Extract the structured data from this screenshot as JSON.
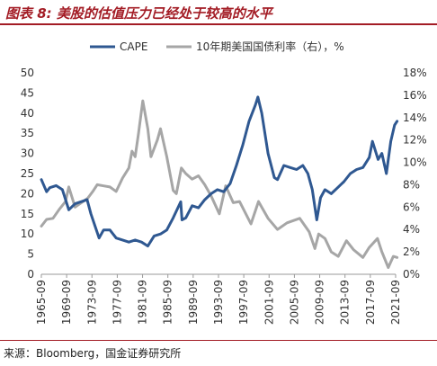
{
  "header": {
    "title": "图表 8: 美股的估值压力已经处于较高的水平"
  },
  "footer": {
    "source": "来源：Bloomberg，国金证券研究所"
  },
  "colors": {
    "cape": "#2f5891",
    "yield": "#a6a6a6",
    "title": "#a31c25"
  },
  "chart_data": {
    "type": "line",
    "title": "",
    "xlabel": "",
    "ylabel": "",
    "y_left_range": [
      0,
      50
    ],
    "y_right_range": [
      0,
      18
    ],
    "y_left_ticks": [
      "0",
      "5",
      "10",
      "15",
      "20",
      "25",
      "30",
      "35",
      "40",
      "45",
      "50"
    ],
    "y_right_ticks": [
      "0%",
      "2%",
      "4%",
      "6%",
      "8%",
      "10%",
      "12%",
      "14%",
      "16%",
      "18%"
    ],
    "x_ticks": [
      "1965-09",
      "1969-09",
      "1973-09",
      "1977-09",
      "1981-09",
      "1985-09",
      "1989-09",
      "1993-09",
      "1997-09",
      "2001-09",
      "2005-09",
      "2009-09",
      "2013-09",
      "2017-09",
      "2021-09"
    ],
    "grid": false,
    "legend_position": "top",
    "series": [
      {
        "name": "CAPE",
        "axis": "left",
        "x": [
          1965.67,
          1966.5,
          1967.0,
          1968.0,
          1969.0,
          1970.0,
          1971.0,
          1972.9,
          1973.5,
          1974.8,
          1975.5,
          1976.5,
          1977.5,
          1978.5,
          1979.5,
          1980.5,
          1981.5,
          1982.5,
          1983.5,
          1984.5,
          1985.5,
          1986.5,
          1987.7,
          1987.9,
          1988.5,
          1989.5,
          1990.5,
          1991.5,
          1992.5,
          1993.5,
          1994.5,
          1995.5,
          1996.5,
          1997.5,
          1998.5,
          1999.5,
          1999.9,
          2000.5,
          2001.5,
          2002.5,
          2003.0,
          2004.0,
          2005.0,
          2006.0,
          2007.0,
          2007.8,
          2008.5,
          2009.2,
          2009.8,
          2010.5,
          2011.5,
          2012.5,
          2013.5,
          2014.5,
          2015.5,
          2016.5,
          2017.5,
          2018.0,
          2018.9,
          2019.5,
          2020.2,
          2020.9,
          2021.5,
          2021.9
        ],
        "y": [
          23.5,
          20.5,
          21.5,
          22.0,
          21.0,
          16.0,
          17.5,
          18.5,
          15.0,
          9.0,
          11.0,
          11.0,
          9.0,
          8.5,
          8.0,
          8.5,
          8.0,
          7.0,
          9.5,
          10.0,
          11.0,
          14.0,
          18.0,
          13.5,
          14.0,
          17.0,
          16.5,
          18.5,
          20.0,
          21.0,
          20.5,
          22.5,
          27.0,
          32.0,
          38.0,
          42.0,
          44.0,
          40.0,
          30.0,
          24.0,
          23.5,
          27.0,
          26.5,
          26.0,
          27.0,
          25.0,
          21.0,
          13.5,
          19.0,
          21.0,
          20.0,
          21.5,
          23.0,
          25.0,
          26.0,
          26.5,
          29.0,
          33.0,
          28.5,
          30.0,
          25.0,
          33.0,
          37.0,
          38.0
        ]
      },
      {
        "name": "10年期美国国债利率（右），%",
        "axis": "right",
        "x": [
          1965.67,
          1966.5,
          1967.5,
          1968.5,
          1969.5,
          1970.0,
          1971.0,
          1972.0,
          1973.0,
          1973.8,
          1974.5,
          1975.5,
          1976.5,
          1977.5,
          1978.5,
          1979.5,
          1980.0,
          1980.5,
          1981.0,
          1981.7,
          1982.5,
          1983.0,
          1984.0,
          1984.5,
          1985.5,
          1986.5,
          1987.0,
          1987.8,
          1988.5,
          1989.5,
          1990.5,
          1991.5,
          1992.5,
          1993.8,
          1994.8,
          1996.0,
          1997.0,
          1998.8,
          2000.0,
          2001.5,
          2003.0,
          2004.5,
          2006.5,
          2008.0,
          2008.9,
          2009.5,
          2010.5,
          2011.5,
          2012.6,
          2013.9,
          2015.0,
          2016.5,
          2017.5,
          2018.8,
          2019.5,
          2020.5,
          2021.3,
          2021.9
        ],
        "y": [
          4.3,
          4.9,
          5.0,
          5.8,
          6.5,
          7.8,
          6.0,
          6.4,
          6.8,
          7.4,
          8.0,
          7.9,
          7.8,
          7.4,
          8.6,
          9.5,
          11.0,
          10.5,
          12.5,
          15.5,
          13.0,
          10.5,
          12.0,
          13.0,
          10.5,
          7.5,
          7.2,
          9.5,
          9.0,
          8.5,
          8.8,
          8.0,
          7.0,
          5.4,
          7.9,
          6.4,
          6.5,
          4.5,
          6.5,
          5.0,
          4.0,
          4.6,
          5.0,
          3.8,
          2.3,
          3.6,
          3.2,
          2.0,
          1.6,
          3.0,
          2.2,
          1.5,
          2.4,
          3.2,
          2.0,
          0.6,
          1.6,
          1.5
        ]
      }
    ]
  }
}
